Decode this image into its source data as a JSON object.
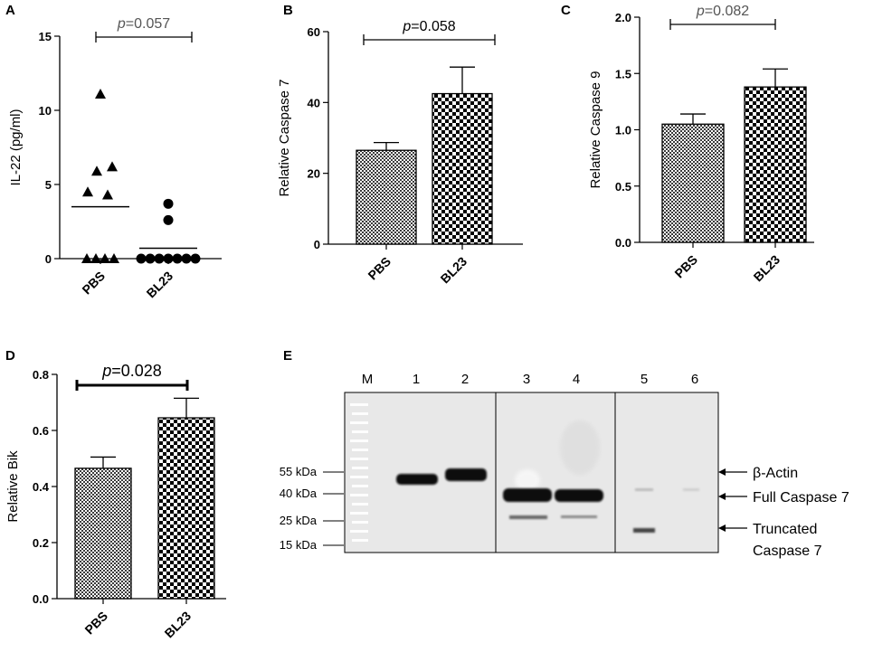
{
  "chart_data": [
    {
      "panel": "A",
      "type": "scatter",
      "ylabel": "IL-22 (pg/ml)",
      "categories": [
        "PBS",
        "BL23"
      ],
      "ylim": [
        0,
        15
      ],
      "yticks": [
        "0",
        "5",
        "10",
        "15"
      ],
      "series": [
        {
          "marker": "triangle",
          "values": [
            11.1,
            6.2,
            5.9,
            4.5,
            4.3,
            0,
            0,
            0,
            0
          ],
          "mean": 3.5
        },
        {
          "marker": "circle",
          "values": [
            3.7,
            2.6,
            0,
            0,
            0,
            0,
            0,
            0,
            0
          ],
          "mean": 0.7
        }
      ],
      "annotation": {
        "prefix": "p",
        "text": "=0.057",
        "p_value": 0.057
      }
    },
    {
      "panel": "B",
      "type": "bar",
      "ylabel": "Relative Caspase 7",
      "categories": [
        "PBS",
        "BL23"
      ],
      "values": [
        26.5,
        42.5
      ],
      "errors": [
        2.2,
        7.5
      ],
      "ylim": [
        0,
        60
      ],
      "yticks": [
        "0",
        "20",
        "40",
        "60"
      ],
      "annotation": {
        "prefix": "p",
        "text": "=0.058",
        "p_value": 0.058
      }
    },
    {
      "panel": "C",
      "type": "bar",
      "ylabel": "Relative Caspase 9",
      "categories": [
        "PBS",
        "BL23"
      ],
      "values": [
        1.05,
        1.38
      ],
      "errors": [
        0.09,
        0.16
      ],
      "ylim": [
        0,
        2.0
      ],
      "yticks": [
        "0.0",
        "0.5",
        "1.0",
        "1.5",
        "2.0"
      ],
      "annotation": {
        "prefix": "p",
        "text": "=0.082",
        "p_value": 0.082
      }
    },
    {
      "panel": "D",
      "type": "bar",
      "ylabel": "Relative Bik",
      "categories": [
        "PBS",
        "BL23"
      ],
      "values": [
        0.465,
        0.645
      ],
      "errors": [
        0.04,
        0.07
      ],
      "ylim": [
        0,
        0.8
      ],
      "yticks": [
        "0.0",
        "0.2",
        "0.4",
        "0.6",
        "0.8"
      ],
      "annotation": {
        "prefix": "p",
        "text": "=0.028",
        "p_value": 0.028
      }
    }
  ],
  "blot": {
    "panel": "E",
    "lanes": [
      "M",
      "1",
      "2",
      "3",
      "4",
      "5",
      "6"
    ],
    "markers": [
      "55 kDa",
      "40 kDa",
      "25 kDa",
      "15 kDa"
    ],
    "bands": [
      "β-Actin",
      "Full Caspase 7",
      "Truncated",
      "Caspase 7"
    ]
  },
  "colors": {
    "axis": "#000000",
    "ptext": "#555555",
    "blot_bg": "#e8e8e8"
  }
}
